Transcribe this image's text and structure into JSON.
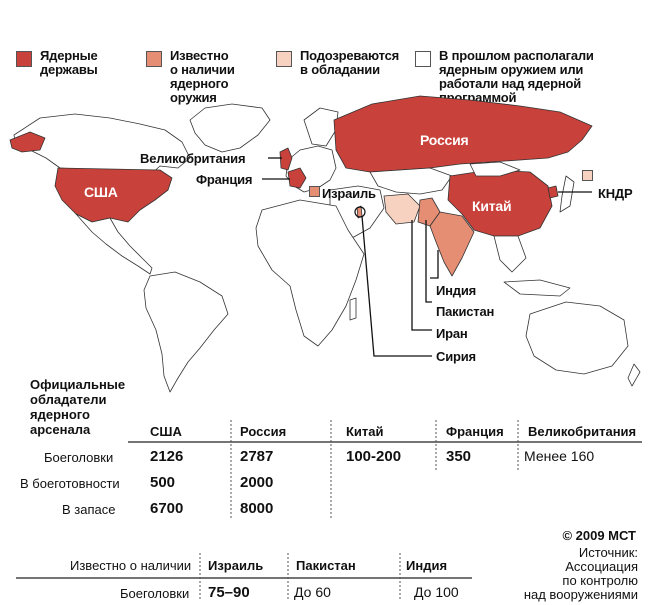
{
  "legend": [
    {
      "label": "Ядерные\nдержавы",
      "color": "#c8413b"
    },
    {
      "label": "Известно\nо наличии\nядерного\nоружия",
      "color": "#e58e74"
    },
    {
      "label": "Подозреваются\nв обладании",
      "color": "#f7d2c0"
    },
    {
      "label": "В прошлом располагали\nядерным оружием или\nработали над ядерной\nпрограммой",
      "color": "#ffffff"
    }
  ],
  "map_labels": {
    "usa": "США",
    "russia": "Россия",
    "china": "Китай",
    "uk": "Великобритания",
    "france": "Франция",
    "israel": "Израиль",
    "dprk": "КНДР",
    "india": "Индия",
    "pakistan": "Пакистан",
    "iran": "Иран",
    "syria": "Сирия"
  },
  "colors": {
    "nuclear": "#c8413b",
    "known": "#e58e74",
    "suspected": "#f7d2c0",
    "past": "#ffffff",
    "land": "#ffffff",
    "border": "#333333"
  },
  "official_table": {
    "title": "Официальные\nобладатели\nядерного\nарсенала",
    "columns": [
      "США",
      "Россия",
      "Китай",
      "Франция",
      "Великобритания"
    ],
    "rows": [
      {
        "label": "Боеголовки",
        "values": [
          "2126",
          "2787",
          "100-200",
          "350",
          "Менее 160"
        ]
      },
      {
        "label": "В боеготовности",
        "values": [
          "500",
          "2000",
          "",
          "",
          ""
        ]
      },
      {
        "label": "В запасе",
        "values": [
          "6700",
          "8000",
          "",
          "",
          ""
        ]
      }
    ]
  },
  "known_table": {
    "title": "Известно о наличии",
    "columns": [
      "Израиль",
      "Пакистан",
      "Индия"
    ],
    "row_label": "Боеголовки",
    "values": [
      "75–90",
      "До 60",
      "До 100"
    ]
  },
  "footer": {
    "copyright": "© 2009 МСТ",
    "source": "Источник:\nАссоциация\nпо контролю\nнад вооружениями"
  }
}
